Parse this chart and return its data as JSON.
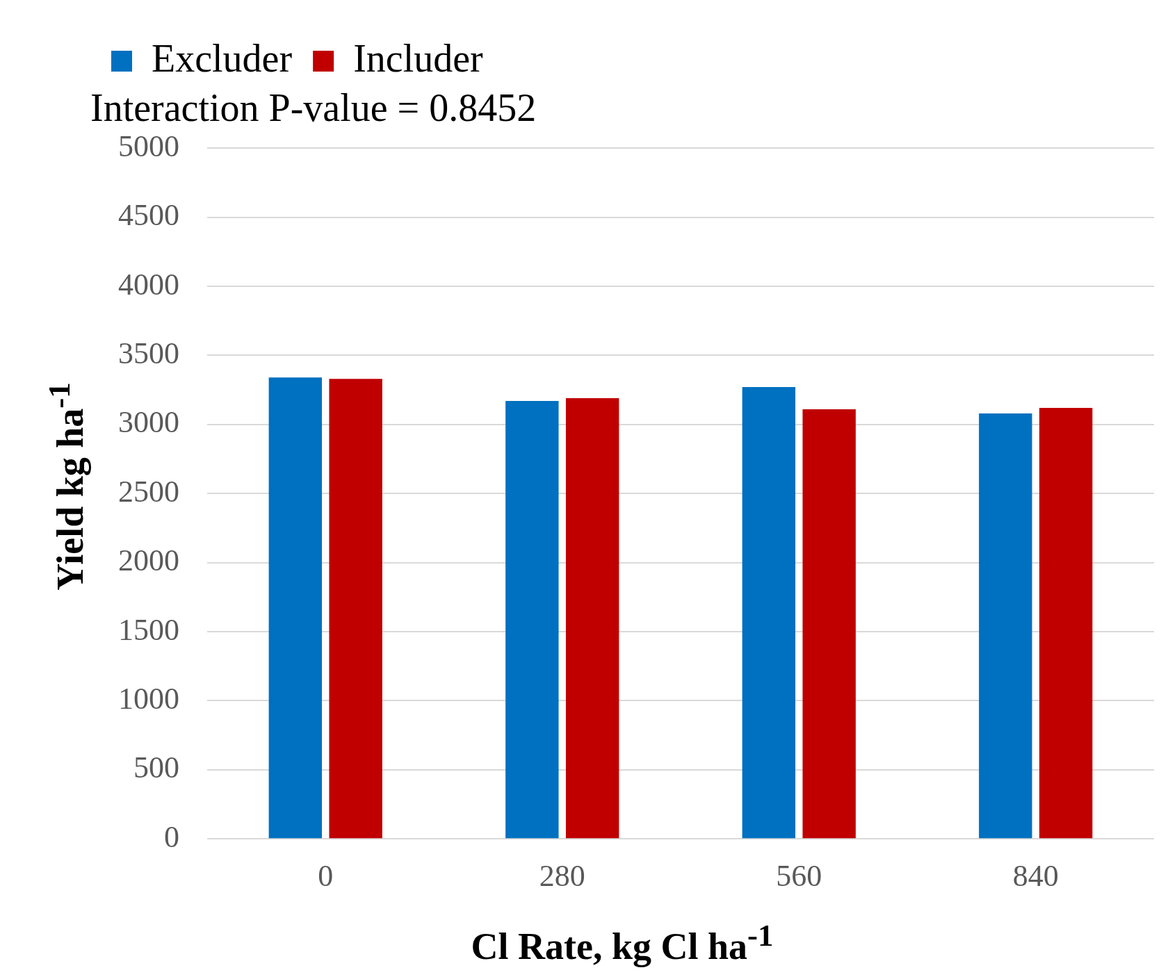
{
  "chart_data": {
    "type": "bar",
    "xlabel": "Cl  Rate, kg Cl ha$^{-1}$",
    "ylabel": "Yield kg ha$^{-1}$",
    "annotations": [
      "Interaction P-value = 0.8452"
    ],
    "categories": [
      "0",
      "280",
      "560",
      "840"
    ],
    "series": [
      {
        "name": "Excluder",
        "color": "#0070c0",
        "values": [
          3340,
          3170,
          3270,
          3080
        ]
      },
      {
        "name": "Includer",
        "color": "#c00000",
        "values": [
          3330,
          3190,
          3110,
          3120
        ]
      }
    ],
    "ylim": [
      0,
      5000
    ],
    "yticks": [
      0,
      500,
      1000,
      1500,
      2000,
      2500,
      3000,
      3500,
      4000,
      4500,
      5000
    ],
    "grid": "y",
    "legend": "top left"
  }
}
